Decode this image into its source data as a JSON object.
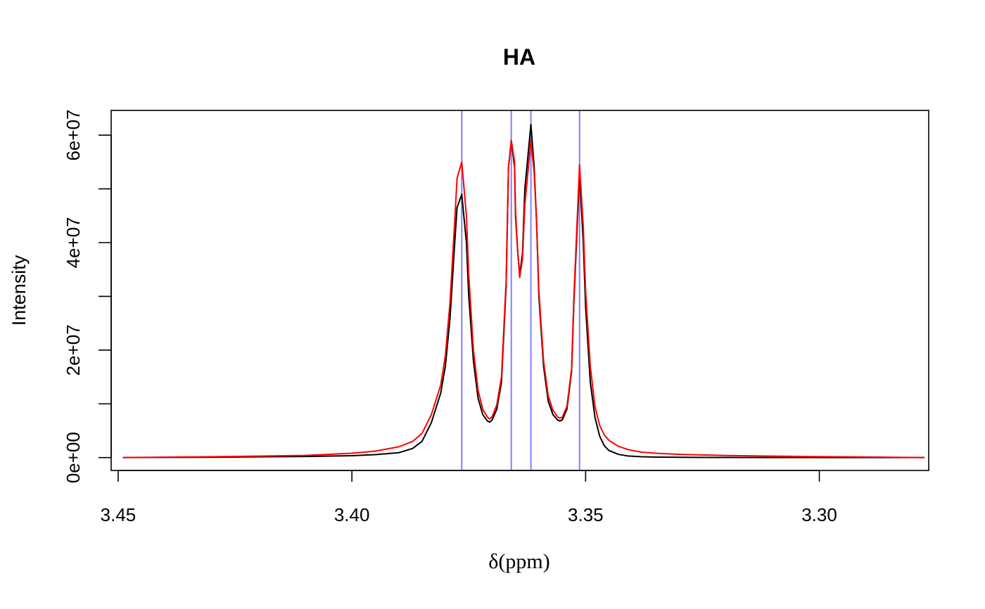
{
  "chart_data": {
    "type": "line",
    "title": "HA",
    "xlabel": "δ(ppm)",
    "ylabel": "Intensity",
    "x_reversed": true,
    "xlim": [
      3.4515,
      3.2766
    ],
    "ylim": [
      -2400000,
      64600000
    ],
    "x_ticks": [
      3.45,
      3.4,
      3.35,
      3.3
    ],
    "x_tick_labels": [
      "3.45",
      "3.40",
      "3.35",
      "3.30"
    ],
    "y_ticks": [
      0,
      10000000,
      20000000,
      30000000,
      40000000,
      50000000,
      60000000
    ],
    "y_tick_labels": [
      "0e+00",
      "",
      "2e+07",
      "",
      "4e+07",
      "",
      "6e+07"
    ],
    "grid": false,
    "vlines": {
      "color": "#8080ff",
      "x": [
        3.3765,
        3.3659,
        3.3617,
        3.3513
      ]
    },
    "series": [
      {
        "color": "#000000",
        "x": [
          3.449,
          3.43,
          3.41,
          3.4,
          3.395,
          3.39,
          3.387,
          3.385,
          3.383,
          3.381,
          3.38,
          3.379,
          3.378,
          3.3775,
          3.3765,
          3.3755,
          3.375,
          3.374,
          3.373,
          3.372,
          3.371,
          3.3705,
          3.37,
          3.369,
          3.368,
          3.367,
          3.3665,
          3.3659,
          3.3652,
          3.365,
          3.3645,
          3.3641,
          3.3635,
          3.363,
          3.3617,
          3.361,
          3.3605,
          3.36,
          3.359,
          3.358,
          3.357,
          3.356,
          3.3555,
          3.355,
          3.354,
          3.353,
          3.3525,
          3.3513,
          3.3505,
          3.35,
          3.349,
          3.348,
          3.347,
          3.346,
          3.345,
          3.343,
          3.341,
          3.338,
          3.335,
          3.33,
          3.32,
          3.31,
          3.3,
          3.29,
          3.2775
        ],
        "y": [
          0,
          60000,
          200000,
          350000,
          550000,
          900000,
          1700000,
          3000000,
          6500000,
          12000000,
          17000000,
          26000000,
          40000000,
          46500000,
          49000000,
          40000000,
          30000000,
          18000000,
          11000000,
          8000000,
          6800000,
          6600000,
          7000000,
          9000000,
          14000000,
          32000000,
          54000000,
          59000000,
          54000000,
          45000000,
          38000000,
          34000000,
          38000000,
          50000000,
          62000000,
          54000000,
          44000000,
          30000000,
          17000000,
          10500000,
          8000000,
          7000000,
          6800000,
          7000000,
          9000000,
          16000000,
          29000000,
          53000000,
          40000000,
          28000000,
          14000000,
          7500000,
          4000000,
          2200000,
          1300000,
          600000,
          300000,
          150000,
          90000,
          50000,
          20000,
          10000,
          5000,
          2000,
          0
        ]
      },
      {
        "color": "#ff0000",
        "x": [
          3.449,
          3.43,
          3.41,
          3.4,
          3.395,
          3.39,
          3.387,
          3.385,
          3.383,
          3.381,
          3.38,
          3.379,
          3.378,
          3.3775,
          3.3765,
          3.3755,
          3.375,
          3.374,
          3.373,
          3.372,
          3.371,
          3.3705,
          3.37,
          3.369,
          3.368,
          3.367,
          3.3665,
          3.3659,
          3.3652,
          3.365,
          3.3645,
          3.3641,
          3.3635,
          3.363,
          3.3617,
          3.361,
          3.3605,
          3.36,
          3.359,
          3.358,
          3.357,
          3.356,
          3.3555,
          3.355,
          3.354,
          3.353,
          3.3525,
          3.3513,
          3.3505,
          3.35,
          3.349,
          3.348,
          3.347,
          3.346,
          3.345,
          3.343,
          3.341,
          3.338,
          3.335,
          3.33,
          3.32,
          3.31,
          3.3,
          3.29,
          3.2775
        ],
        "y": [
          0,
          150000,
          400000,
          800000,
          1200000,
          2000000,
          3000000,
          4500000,
          8000000,
          13500000,
          19000000,
          29000000,
          44000000,
          52000000,
          55000000,
          45000000,
          34000000,
          20000000,
          12500000,
          9000000,
          7500000,
          7200000,
          7600000,
          9800000,
          15000000,
          33000000,
          54000000,
          59000000,
          55000000,
          46000000,
          38000000,
          33500000,
          37000000,
          47000000,
          59000000,
          53000000,
          44000000,
          31000000,
          18000000,
          11500000,
          8800000,
          7600000,
          7300000,
          7500000,
          9500000,
          16500000,
          30000000,
          54500000,
          43000000,
          31000000,
          17000000,
          9500000,
          6000000,
          4200000,
          3200000,
          2100000,
          1500000,
          1000000,
          800000,
          600000,
          380000,
          260000,
          170000,
          100000,
          0
        ]
      }
    ]
  }
}
